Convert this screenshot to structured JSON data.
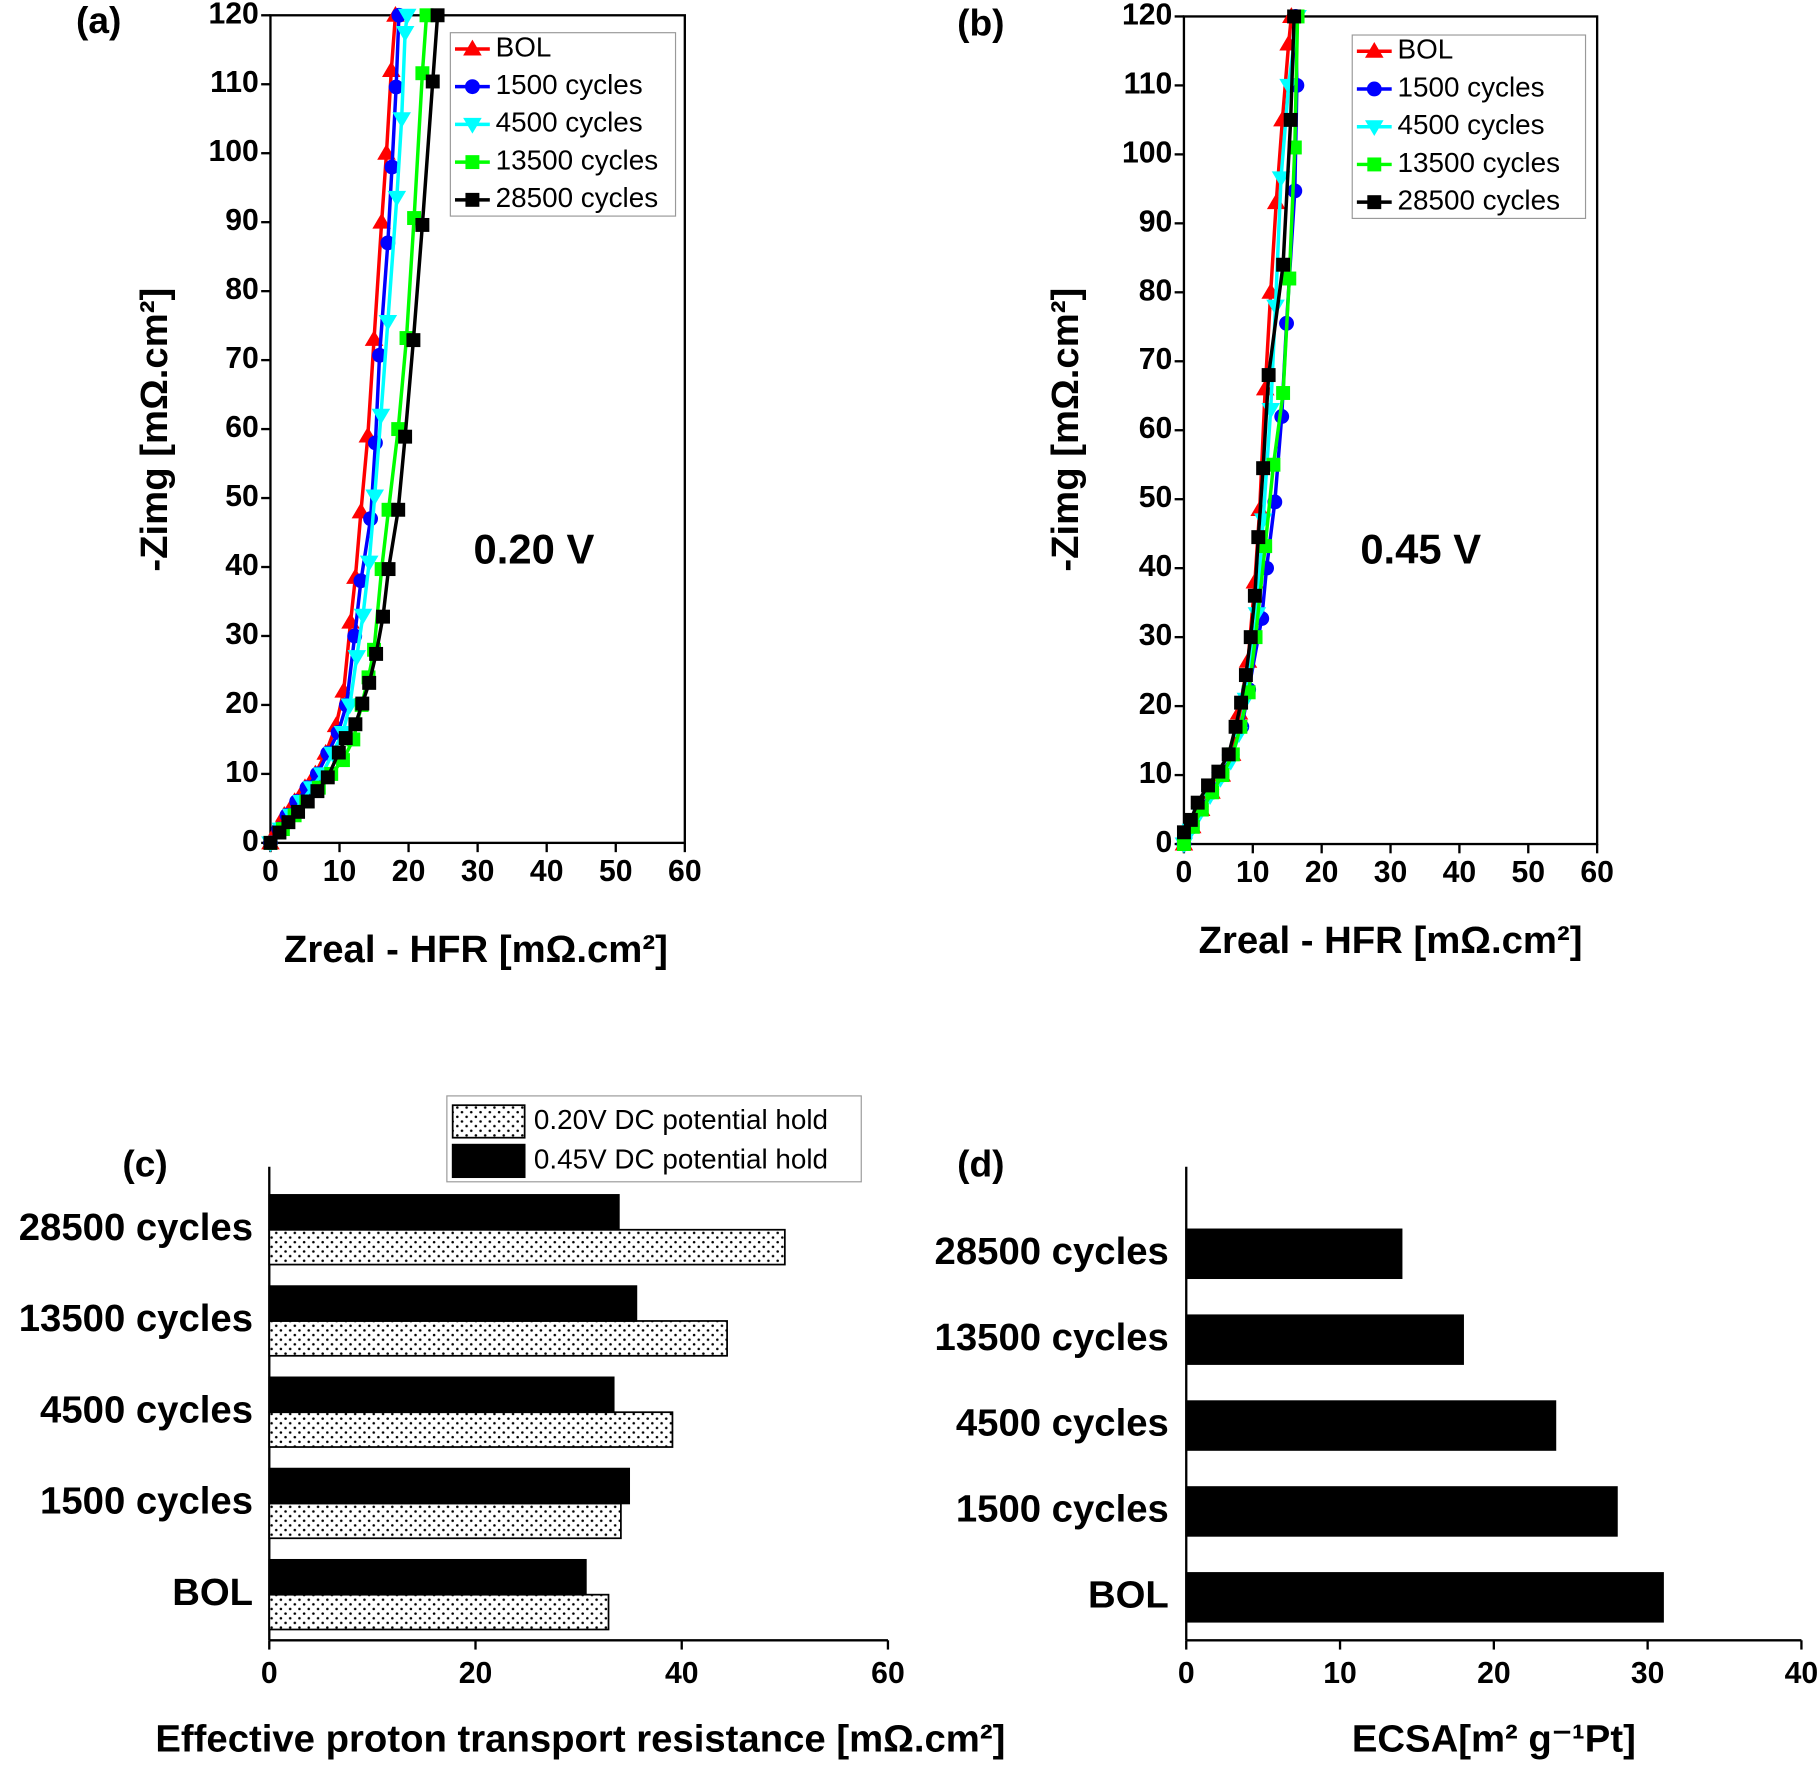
{
  "chart_data": [
    {
      "type": "line",
      "label": "(a)",
      "annotation": "0.20 V",
      "xlabel": "Zreal - HFR [mΩ.cm²]",
      "ylabel": "-Zimg [mΩ.cm²]",
      "xlim": [
        0,
        60
      ],
      "ylim": [
        0,
        120
      ],
      "xticks": [
        0,
        10,
        20,
        30,
        40,
        50,
        60
      ],
      "yticks": [
        0,
        10,
        20,
        30,
        40,
        50,
        60,
        70,
        80,
        90,
        100,
        110,
        120
      ],
      "legend": "upper right",
      "series": [
        {
          "name": "BOL",
          "color": "#ff0000",
          "marker": "triangle-up",
          "x": [
            0,
            1,
            2,
            3.5,
            5,
            6.5,
            8,
            9.5,
            10.6,
            11.6,
            12.3,
            13.1,
            14.1,
            15,
            16.1,
            16.8,
            17.5,
            18.1
          ],
          "values": [
            0,
            2,
            4,
            6,
            8,
            10,
            13,
            17,
            22,
            32,
            38.5,
            48,
            59,
            73,
            90,
            100,
            112,
            120
          ]
        },
        {
          "name": "1500 cycles",
          "color": "#0000ff",
          "marker": "circle",
          "x": [
            0,
            1.2,
            2.4,
            3.8,
            5.3,
            6.8,
            8.3,
            9.8,
            11,
            12.2,
            13.1,
            14.5,
            15.2,
            15.8,
            17,
            17.6,
            18.2,
            18.6
          ],
          "values": [
            0,
            2,
            4,
            6,
            8,
            10,
            13,
            16,
            20,
            30,
            38,
            47,
            58,
            70.7,
            87,
            98,
            109.6,
            120
          ]
        },
        {
          "name": "4500 cycles",
          "color": "#00ffff",
          "marker": "triangle-down",
          "x": [
            0,
            1.5,
            3,
            4.5,
            6,
            7.5,
            9,
            10.5,
            11.5,
            12.5,
            13.4,
            14.3,
            15.1,
            16,
            17,
            18.3,
            19,
            19.5,
            19.8
          ],
          "values": [
            0,
            2,
            4,
            6,
            8,
            10,
            13,
            16,
            20,
            27,
            33,
            40.7,
            50.3,
            62,
            75.6,
            93.6,
            105,
            117.5,
            120
          ]
        },
        {
          "name": "13500 cycles",
          "color": "#00ff00",
          "marker": "square",
          "x": [
            0,
            1.8,
            3.5,
            5.2,
            7,
            8.8,
            10.5,
            12,
            13.2,
            14.2,
            15,
            16.1,
            17.1,
            18.5,
            19.7,
            20.8,
            22,
            22.6
          ],
          "values": [
            0,
            2,
            4,
            6,
            8,
            10,
            12,
            15,
            20,
            24,
            28,
            39.7,
            48.3,
            60,
            73.2,
            90.6,
            111.6,
            120
          ]
        },
        {
          "name": "28500 cycles",
          "color": "#000000",
          "marker": "square",
          "x": [
            0,
            1.3,
            2.6,
            4,
            5.4,
            6.8,
            8.3,
            9.9,
            10.9,
            12.3,
            13.3,
            14.3,
            15.3,
            16.3,
            17.1,
            18.5,
            19.5,
            20.7,
            22,
            23.5,
            24.2
          ],
          "values": [
            0,
            1.5,
            3,
            4.5,
            6,
            7.5,
            9.5,
            13.1,
            15.2,
            17.2,
            20.2,
            23.2,
            27.4,
            32.8,
            39.7,
            48.3,
            58.9,
            72.9,
            89.6,
            110.4,
            120
          ]
        }
      ]
    },
    {
      "type": "line",
      "label": "(b)",
      "annotation": "0.45 V",
      "xlabel": "Zreal - HFR [mΩ.cm²]",
      "ylabel": "-Zimg [mΩ.cm²]",
      "xlim": [
        0,
        60
      ],
      "ylim": [
        0,
        120
      ],
      "xticks": [
        0,
        10,
        20,
        30,
        40,
        50,
        60
      ],
      "yticks": [
        0,
        10,
        20,
        30,
        40,
        50,
        60,
        70,
        80,
        90,
        100,
        110,
        120
      ],
      "legend": "upper right",
      "series": [
        {
          "name": "BOL",
          "color": "#ff0000",
          "marker": "triangle-up",
          "x": [
            0,
            1.2,
            2.5,
            4,
            5.5,
            7,
            8,
            9.3,
            10.3,
            11,
            11.8,
            12.6,
            13.4,
            14.3,
            15.2,
            15.6
          ],
          "values": [
            0,
            2.5,
            5,
            7.5,
            10,
            13,
            19,
            26.5,
            38,
            48.5,
            66,
            80,
            93,
            105,
            116,
            120
          ]
        },
        {
          "name": "1500 cycles",
          "color": "#0000ff",
          "marker": "circle",
          "x": [
            0,
            1.2,
            2.5,
            4,
            5.5,
            7,
            8.4,
            9.4,
            11.3,
            12,
            13.2,
            14.2,
            14.9,
            16.1,
            16.4,
            16.2
          ],
          "values": [
            0,
            2.5,
            5,
            7.5,
            10,
            13,
            17,
            22.4,
            32.7,
            40,
            49.6,
            62,
            75.5,
            94.7,
            110,
            120
          ]
        },
        {
          "name": "4500 cycles",
          "color": "#00ffff",
          "marker": "triangle-down",
          "x": [
            0,
            1,
            2.3,
            3.8,
            5.3,
            6.8,
            8,
            9,
            10.6,
            11.5,
            12.6,
            13.3,
            14.1,
            15.2,
            16.5
          ],
          "values": [
            0,
            2,
            4.5,
            7,
            9.5,
            12,
            16,
            21,
            33.4,
            47,
            63,
            78,
            96.6,
            110,
            120
          ]
        },
        {
          "name": "13500 cycles",
          "color": "#00ff00",
          "marker": "square",
          "x": [
            0,
            1.3,
            2.6,
            4.1,
            5.6,
            7.1,
            8.2,
            9.4,
            10.4,
            11.8,
            13,
            14.4,
            15.3,
            16.1,
            16.5
          ],
          "values": [
            0,
            2.5,
            5,
            7.5,
            10,
            13,
            17,
            22,
            30,
            43.2,
            55,
            65.4,
            82,
            101,
            120
          ]
        },
        {
          "name": "28500 cycles",
          "color": "#000000",
          "marker": "square",
          "x": [
            0,
            1,
            2,
            3.5,
            5,
            6.5,
            7.5,
            8.3,
            9,
            9.7,
            10.3,
            10.8,
            11.5,
            12.3,
            14.4,
            15.5,
            16
          ],
          "values": [
            1.7,
            3.5,
            6,
            8.5,
            10.5,
            13,
            17,
            20.5,
            24.5,
            30,
            36,
            44.5,
            54.5,
            68,
            84,
            105,
            120
          ]
        }
      ]
    },
    {
      "type": "bar",
      "orientation": "horizontal",
      "label": "(c)",
      "xlabel": "Effective proton transport resistance  [mΩ.cm²]",
      "categories": [
        "BOL",
        "1500 cycles",
        "4500 cycles",
        "13500 cycles",
        "28500 cycles"
      ],
      "xlim": [
        0,
        60
      ],
      "xticks": [
        0,
        20,
        40,
        60
      ],
      "legend": "top",
      "series": [
        {
          "name": "0.20V DC potential hold",
          "color": "#ffffff",
          "pattern": "dots",
          "values": [
            32.9,
            34.1,
            39.1,
            44.4,
            50
          ]
        },
        {
          "name": "0.45V DC potential hold",
          "color": "#000000",
          "values": [
            30.7,
            34.9,
            33.4,
            35.6,
            33.9
          ]
        }
      ]
    },
    {
      "type": "bar",
      "orientation": "horizontal",
      "label": "(d)",
      "xlabel": "ECSA[m² g⁻¹Pt]",
      "categories": [
        "BOL",
        "1500 cycles",
        "4500 cycles",
        "13500 cycles",
        "28500 cycles"
      ],
      "xlim": [
        0,
        40
      ],
      "xticks": [
        0,
        10,
        20,
        30,
        40
      ],
      "color": "#000000",
      "values": [
        31,
        28,
        24,
        18,
        14
      ]
    }
  ]
}
